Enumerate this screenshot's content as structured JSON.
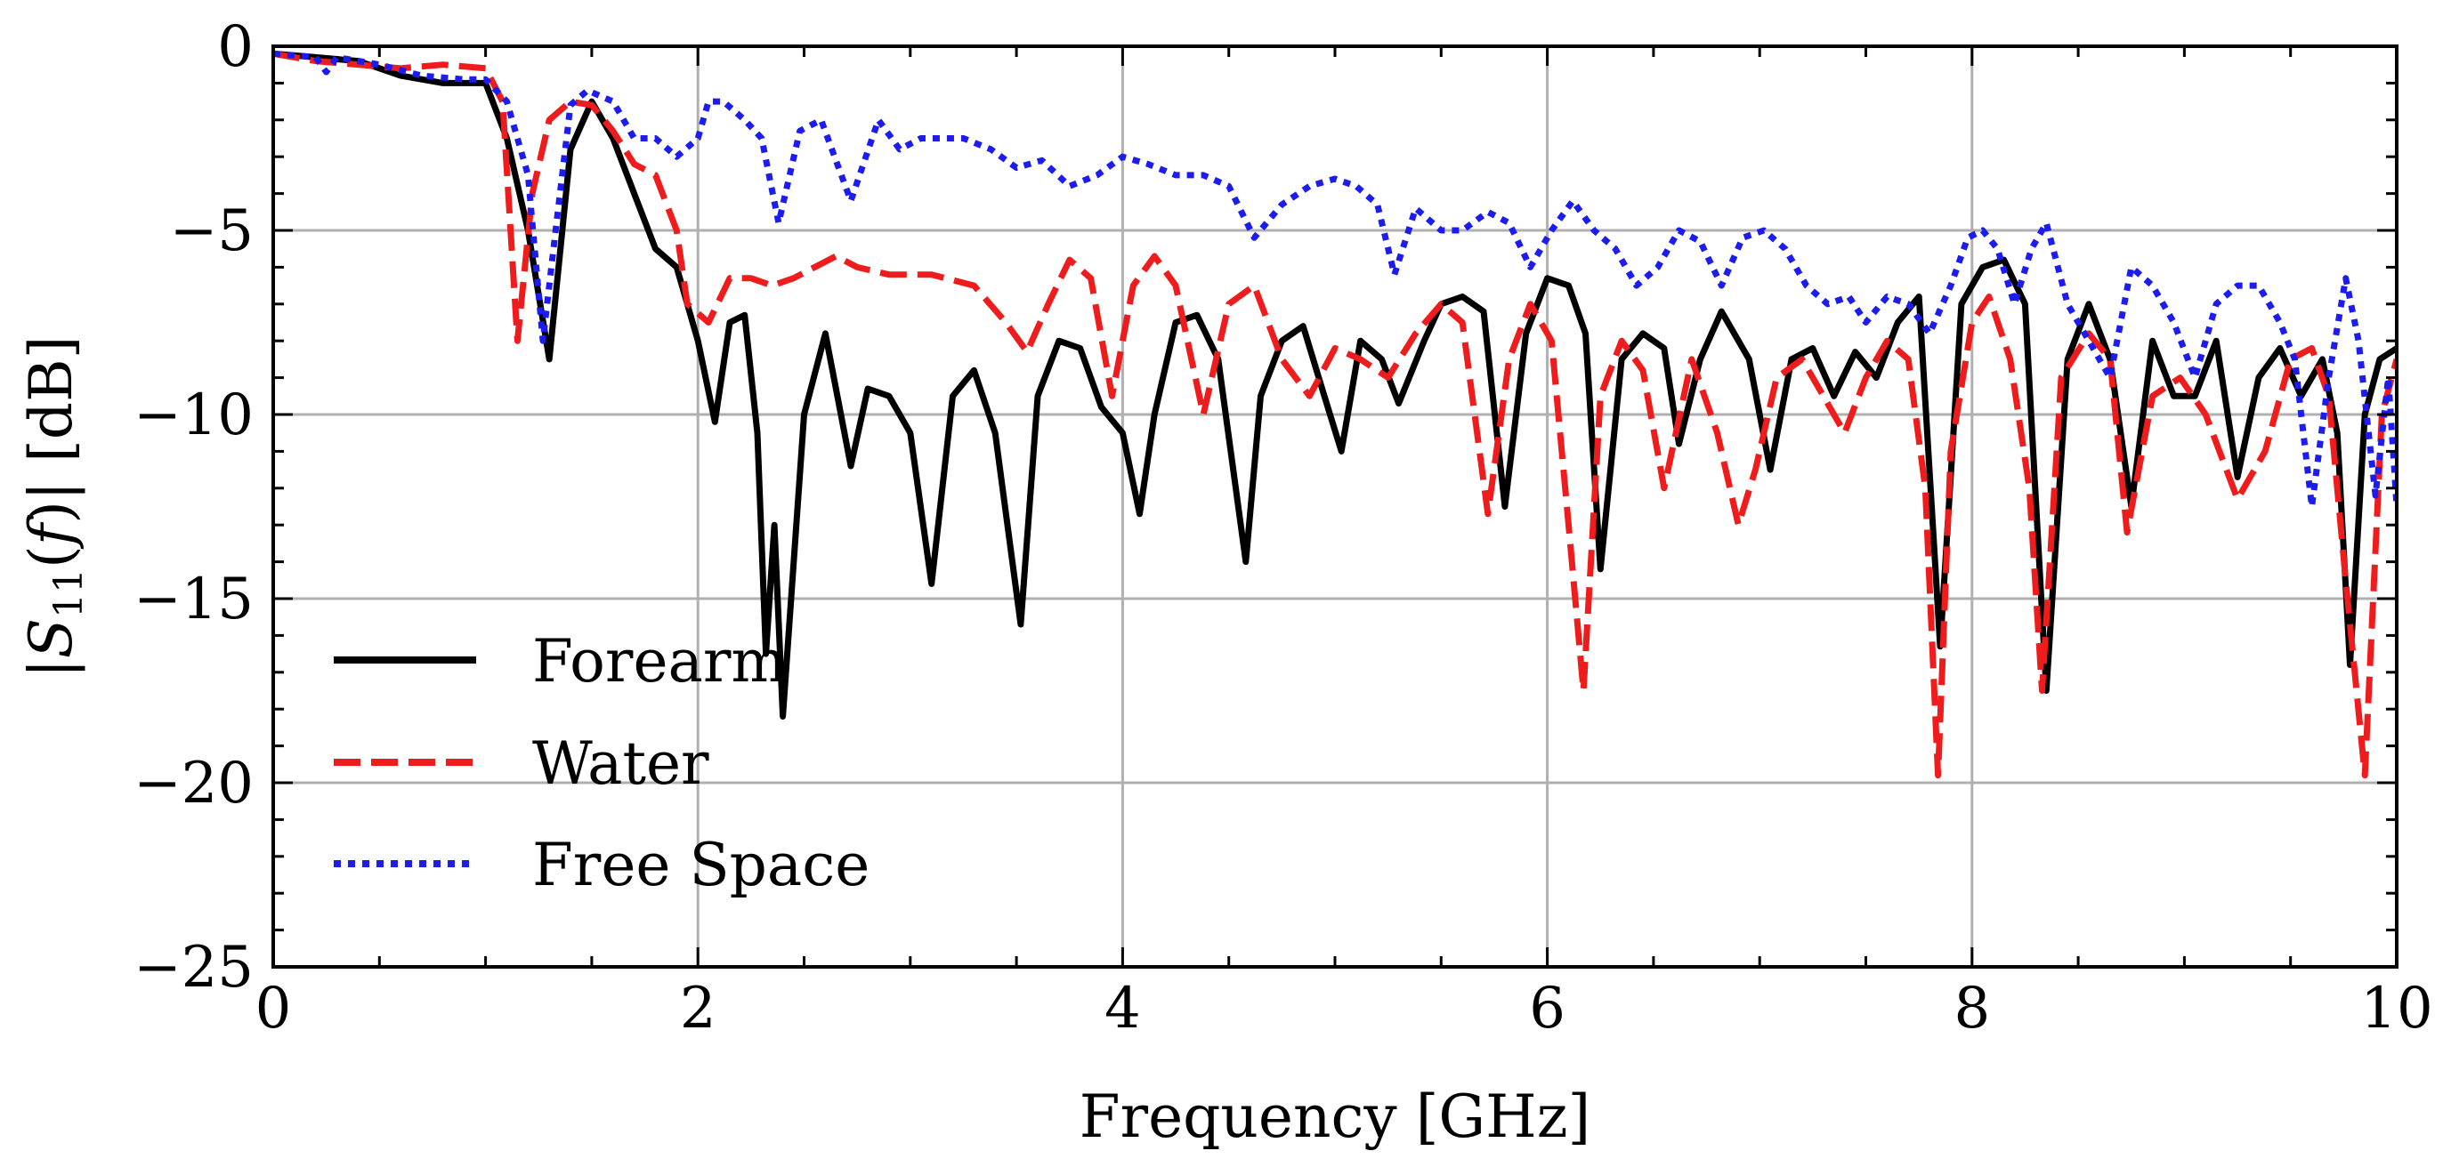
{
  "chart_data": {
    "type": "line",
    "title": "",
    "xlabel": "Frequency [GHz]",
    "ylabel": "|S11(f)| [dB]",
    "ylabel_parts": {
      "open": "|",
      "var": "S",
      "sub": "11",
      "mid": "(",
      "fvar": "f",
      "close": ")|",
      "unit": " [dB]"
    },
    "xlim": [
      0,
      10
    ],
    "ylim": [
      -25,
      0
    ],
    "xticks": [
      0,
      2,
      4,
      6,
      8,
      10
    ],
    "xtick_labels": [
      "0",
      "2",
      "4",
      "6",
      "8",
      "10"
    ],
    "yticks": [
      0,
      -5,
      -10,
      -15,
      -20,
      -25
    ],
    "ytick_labels": [
      "0",
      "−5",
      "−10",
      "−15",
      "−20",
      "−25"
    ],
    "grid": true,
    "legend_position": "lower-left",
    "series": [
      {
        "name": "Forearm",
        "color": "#000000",
        "style": "solid",
        "x": [
          0,
          0.2,
          0.4,
          0.6,
          0.8,
          1.0,
          1.1,
          1.2,
          1.3,
          1.4,
          1.5,
          1.6,
          1.7,
          1.8,
          1.9,
          2.0,
          2.08,
          2.15,
          2.22,
          2.28,
          2.32,
          2.36,
          2.4,
          2.5,
          2.6,
          2.72,
          2.8,
          2.9,
          3.0,
          3.1,
          3.2,
          3.3,
          3.4,
          3.52,
          3.6,
          3.7,
          3.8,
          3.9,
          4.0,
          4.08,
          4.15,
          4.25,
          4.35,
          4.45,
          4.58,
          4.65,
          4.75,
          4.85,
          4.95,
          5.03,
          5.12,
          5.22,
          5.3,
          5.42,
          5.5,
          5.6,
          5.7,
          5.8,
          5.9,
          6.0,
          6.1,
          6.18,
          6.25,
          6.35,
          6.45,
          6.55,
          6.62,
          6.72,
          6.82,
          6.95,
          7.05,
          7.15,
          7.25,
          7.35,
          7.45,
          7.55,
          7.65,
          7.75,
          7.85,
          7.95,
          8.05,
          8.15,
          8.25,
          8.35,
          8.45,
          8.55,
          8.65,
          8.75,
          8.85,
          8.95,
          9.05,
          9.15,
          9.25,
          9.35,
          9.45,
          9.55,
          9.65,
          9.72,
          9.78,
          9.85,
          9.92,
          10.0
        ],
        "y": [
          -0.2,
          -0.3,
          -0.4,
          -0.8,
          -1.0,
          -1.0,
          -2.5,
          -5.0,
          -8.5,
          -2.8,
          -1.5,
          -2.5,
          -4.0,
          -5.5,
          -6.0,
          -8.0,
          -10.2,
          -7.5,
          -7.3,
          -10.5,
          -16.5,
          -13.0,
          -18.2,
          -10.0,
          -7.8,
          -11.4,
          -9.3,
          -9.5,
          -10.5,
          -14.6,
          -9.5,
          -8.8,
          -10.5,
          -15.7,
          -9.5,
          -8.0,
          -8.2,
          -9.8,
          -10.5,
          -12.7,
          -10.0,
          -7.5,
          -7.3,
          -8.5,
          -14.0,
          -9.5,
          -8.0,
          -7.6,
          -9.5,
          -11.0,
          -8.0,
          -8.5,
          -9.7,
          -8.0,
          -7.0,
          -6.8,
          -7.2,
          -12.5,
          -7.8,
          -6.3,
          -6.5,
          -7.8,
          -14.2,
          -8.5,
          -7.8,
          -8.2,
          -10.8,
          -8.5,
          -7.2,
          -8.5,
          -11.5,
          -8.5,
          -8.2,
          -9.5,
          -8.3,
          -9.0,
          -7.5,
          -6.8,
          -16.3,
          -7.0,
          -6.0,
          -5.8,
          -7.0,
          -17.5,
          -8.5,
          -7.0,
          -8.5,
          -12.5,
          -8.0,
          -9.5,
          -9.5,
          -8.0,
          -11.7,
          -9.0,
          -8.2,
          -9.5,
          -8.5,
          -10.5,
          -16.8,
          -10.0,
          -8.5,
          -8.2
        ]
      },
      {
        "name": "Water",
        "color": "#ee1c1c",
        "style": "dashed",
        "x": [
          0,
          0.2,
          0.4,
          0.6,
          0.8,
          1.0,
          1.08,
          1.15,
          1.22,
          1.3,
          1.4,
          1.5,
          1.6,
          1.7,
          1.8,
          1.9,
          1.95,
          2.05,
          2.15,
          2.25,
          2.35,
          2.45,
          2.55,
          2.65,
          2.75,
          2.9,
          3.1,
          3.3,
          3.45,
          3.55,
          3.65,
          3.75,
          3.85,
          3.95,
          4.05,
          4.15,
          4.25,
          4.38,
          4.5,
          4.62,
          4.75,
          4.88,
          5.0,
          5.12,
          5.25,
          5.38,
          5.5,
          5.6,
          5.72,
          5.82,
          5.92,
          6.02,
          6.1,
          6.17,
          6.25,
          6.35,
          6.45,
          6.55,
          6.68,
          6.8,
          6.9,
          6.98,
          7.08,
          7.2,
          7.3,
          7.4,
          7.5,
          7.6,
          7.7,
          7.78,
          7.84,
          7.9,
          8.0,
          8.08,
          8.18,
          8.27,
          8.33,
          8.42,
          8.55,
          8.65,
          8.73,
          8.85,
          8.98,
          9.1,
          9.25,
          9.38,
          9.5,
          9.6,
          9.68,
          9.76,
          9.85,
          9.93,
          10.0
        ],
        "y": [
          -0.2,
          -0.4,
          -0.5,
          -0.6,
          -0.5,
          -0.6,
          -1.5,
          -8.0,
          -4.0,
          -2.0,
          -1.5,
          -1.6,
          -2.3,
          -3.2,
          -3.5,
          -5.0,
          -7.0,
          -7.5,
          -6.3,
          -6.3,
          -6.5,
          -6.3,
          -6.0,
          -5.7,
          -6.0,
          -6.2,
          -6.2,
          -6.5,
          -7.5,
          -8.3,
          -7.0,
          -5.8,
          -6.3,
          -9.5,
          -6.5,
          -5.7,
          -6.5,
          -10.0,
          -7.0,
          -6.5,
          -8.5,
          -9.5,
          -8.2,
          -8.5,
          -9.0,
          -7.8,
          -7.0,
          -7.5,
          -12.7,
          -8.5,
          -7.0,
          -8.0,
          -13.0,
          -17.5,
          -9.5,
          -8.0,
          -8.8,
          -12.0,
          -8.5,
          -10.5,
          -13.0,
          -11.5,
          -9.0,
          -8.5,
          -9.5,
          -10.5,
          -9.0,
          -8.0,
          -8.5,
          -12.0,
          -19.8,
          -11.0,
          -7.5,
          -6.8,
          -8.5,
          -12.0,
          -17.5,
          -9.0,
          -7.8,
          -8.5,
          -13.2,
          -9.5,
          -9.0,
          -10.0,
          -12.3,
          -11.0,
          -8.5,
          -8.2,
          -9.5,
          -14.5,
          -19.8,
          -10.0,
          -8.5
        ]
      },
      {
        "name": "Free Space",
        "color": "#1c1cee",
        "style": "dotted",
        "x": [
          0,
          0.1,
          0.2,
          0.25,
          0.3,
          0.5,
          0.7,
          0.9,
          1.0,
          1.1,
          1.2,
          1.27,
          1.33,
          1.4,
          1.48,
          1.6,
          1.7,
          1.8,
          1.9,
          2.0,
          2.05,
          2.12,
          2.22,
          2.3,
          2.38,
          2.48,
          2.58,
          2.72,
          2.85,
          2.95,
          3.05,
          3.15,
          3.25,
          3.38,
          3.5,
          3.62,
          3.75,
          3.88,
          4.0,
          4.12,
          4.25,
          4.38,
          4.5,
          4.62,
          4.75,
          4.88,
          5.0,
          5.1,
          5.2,
          5.28,
          5.38,
          5.5,
          5.6,
          5.72,
          5.82,
          5.92,
          6.02,
          6.12,
          6.22,
          6.32,
          6.42,
          6.52,
          6.62,
          6.72,
          6.82,
          6.92,
          7.02,
          7.12,
          7.22,
          7.32,
          7.42,
          7.5,
          7.6,
          7.7,
          7.8,
          7.9,
          7.98,
          8.05,
          8.12,
          8.2,
          8.28,
          8.35,
          8.45,
          8.55,
          8.65,
          8.75,
          8.85,
          8.95,
          9.05,
          9.15,
          9.25,
          9.35,
          9.45,
          9.52,
          9.6,
          9.68,
          9.76,
          9.82,
          9.9,
          9.96,
          10.0
        ],
        "y": [
          -0.2,
          -0.25,
          -0.3,
          -0.7,
          -0.3,
          -0.5,
          -0.8,
          -0.9,
          -0.9,
          -1.5,
          -3.5,
          -8.0,
          -5.0,
          -1.6,
          -1.2,
          -1.5,
          -2.5,
          -2.5,
          -3.0,
          -2.5,
          -1.5,
          -1.5,
          -2.0,
          -2.5,
          -4.8,
          -2.3,
          -2.0,
          -4.2,
          -2.0,
          -2.8,
          -2.5,
          -2.5,
          -2.5,
          -2.8,
          -3.3,
          -3.1,
          -3.8,
          -3.5,
          -3.0,
          -3.2,
          -3.5,
          -3.5,
          -3.8,
          -5.2,
          -4.3,
          -3.8,
          -3.6,
          -3.8,
          -4.3,
          -6.2,
          -4.4,
          -5.0,
          -5.0,
          -4.5,
          -4.8,
          -6.0,
          -5.0,
          -4.2,
          -5.0,
          -5.5,
          -6.5,
          -6.0,
          -5.0,
          -5.3,
          -6.5,
          -5.2,
          -5.0,
          -5.5,
          -6.5,
          -7.0,
          -6.8,
          -7.5,
          -6.8,
          -7.0,
          -7.8,
          -6.5,
          -5.2,
          -5.0,
          -5.5,
          -7.0,
          -5.5,
          -4.8,
          -7.0,
          -8.0,
          -9.0,
          -6.0,
          -6.5,
          -7.5,
          -9.0,
          -7.0,
          -6.5,
          -6.5,
          -7.5,
          -8.5,
          -12.5,
          -9.0,
          -6.3,
          -8.0,
          -12.2,
          -9.0,
          -12.5
        ]
      }
    ]
  }
}
